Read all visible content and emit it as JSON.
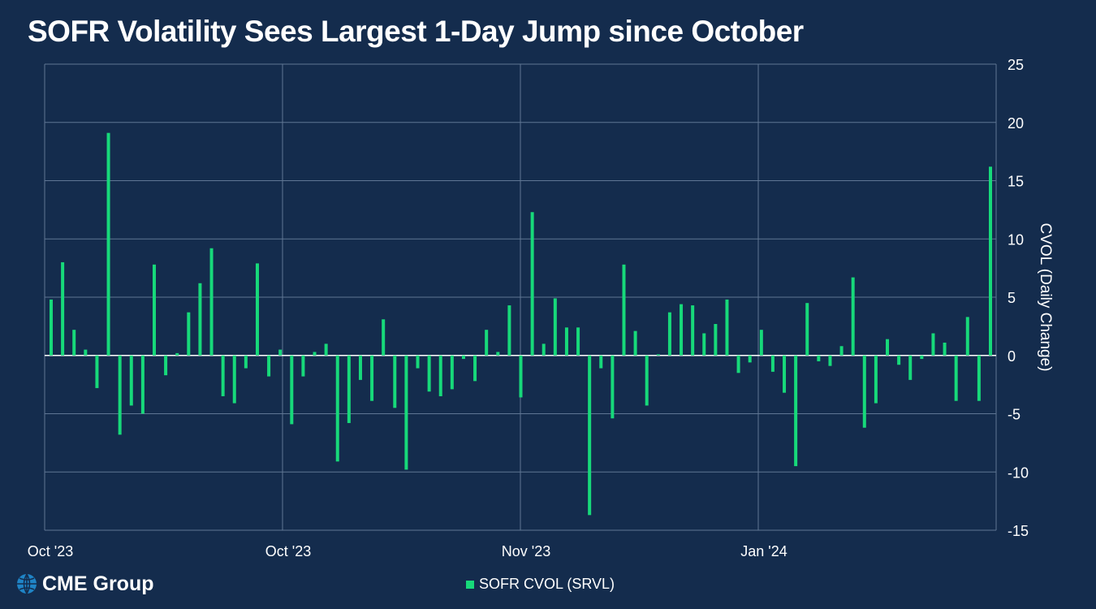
{
  "title": "SOFR Volatility Sees Largest 1-Day Jump since October",
  "logo": {
    "text": "CME Group"
  },
  "colors": {
    "background": "#142c4d",
    "bar": "#17d97a",
    "grid": "#5f7694",
    "text": "#ffffff"
  },
  "chart_data": {
    "type": "bar",
    "title": "SOFR Volatility Sees Largest 1-Day Jump since October",
    "ylabel": "CVOL (Daily Change)",
    "ylim": [
      -15,
      25
    ],
    "yticks": [
      25,
      20,
      15,
      10,
      5,
      0,
      -5,
      -10,
      -15
    ],
    "xtick_labels": [
      "Oct '23",
      "Oct '23",
      "Nov '23",
      "Jan '24"
    ],
    "grid": true,
    "y_axis_position": "right",
    "legend_position": "bottom-center",
    "series": [
      {
        "name": "SOFR CVOL (SRVL)",
        "values": [
          4.8,
          8.0,
          2.2,
          0.5,
          -2.8,
          19.1,
          -6.8,
          -4.3,
          -5.0,
          7.8,
          -1.7,
          0.2,
          3.7,
          6.2,
          9.2,
          -3.5,
          -4.1,
          -1.1,
          7.9,
          -1.8,
          0.5,
          -5.9,
          -1.8,
          0.3,
          1.0,
          -9.1,
          -5.8,
          -2.1,
          -3.9,
          3.1,
          -4.5,
          -9.8,
          -1.1,
          -3.1,
          -3.5,
          -2.9,
          -0.3,
          -2.2,
          2.2,
          0.3,
          4.3,
          -3.6,
          12.3,
          1.0,
          4.9,
          2.4,
          2.4,
          -13.7,
          -1.1,
          -5.4,
          7.8,
          2.1,
          -4.3,
          0.1,
          3.7,
          4.4,
          4.3,
          1.9,
          2.7,
          4.8,
          -1.5,
          -0.6,
          2.2,
          -1.4,
          -3.2,
          -9.5,
          4.5,
          -0.5,
          -0.9,
          0.8,
          6.7,
          -6.2,
          -4.1,
          1.4,
          -0.8,
          -2.1,
          -0.3,
          1.9,
          1.1,
          -3.9,
          3.3,
          -3.9,
          16.2
        ]
      }
    ]
  }
}
